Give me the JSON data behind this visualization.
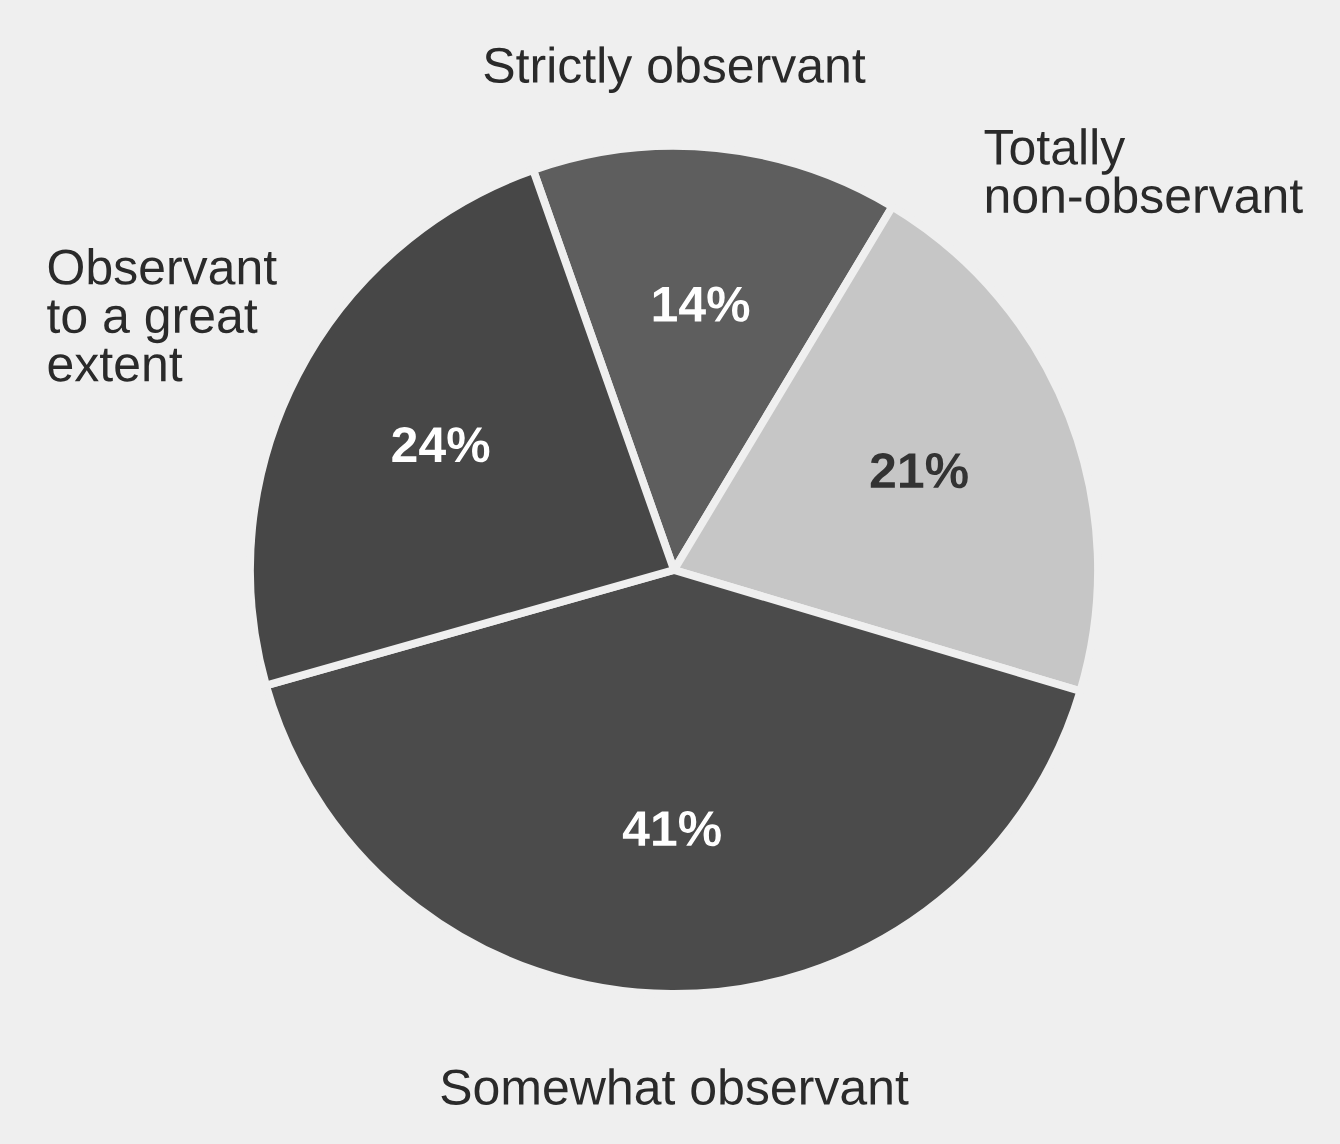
{
  "chart_data": {
    "type": "pie",
    "categories": [
      "Strictly observant",
      "Totally\nnon-observant",
      "Somewhat observant",
      "Observant\nto a great\nextent"
    ],
    "values": [
      14,
      21,
      41,
      24
    ],
    "colors": [
      "#5e5e5e",
      "#c6c6c6",
      "#4b4b4b",
      "#474747"
    ],
    "value_labels": [
      "14%",
      "21%",
      "41%",
      "24%"
    ]
  }
}
